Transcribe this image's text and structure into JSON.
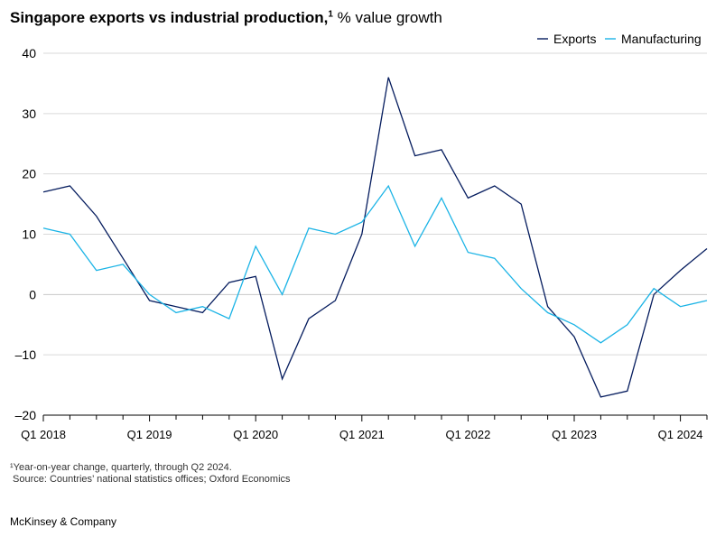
{
  "title": {
    "main": "Singapore exports vs industrial production,",
    "sup": "1",
    "sub": " % value growth"
  },
  "footnote": {
    "note": "¹Year-on-year change, quarterly, through Q2 2024.",
    "source": "Source: Countries’ national statistics offices; Oxford Economics"
  },
  "brand": "McKinsey & Company",
  "chart_data": {
    "type": "line",
    "ylim": [
      -20,
      40
    ],
    "yticks": [
      40,
      30,
      20,
      10,
      0,
      -10,
      -20
    ],
    "ytick_labels": [
      "40",
      "30",
      "20",
      "10",
      "0",
      "–10",
      "–20"
    ],
    "x": [
      "Q1 2018",
      "Q2 2018",
      "Q3 2018",
      "Q4 2018",
      "Q1 2019",
      "Q2 2019",
      "Q3 2019",
      "Q4 2019",
      "Q1 2020",
      "Q2 2020",
      "Q3 2020",
      "Q4 2020",
      "Q1 2021",
      "Q2 2021",
      "Q3 2021",
      "Q4 2021",
      "Q1 2022",
      "Q2 2022",
      "Q3 2022",
      "Q4 2022",
      "Q1 2023",
      "Q2 2023",
      "Q3 2023",
      "Q4 2023",
      "Q1 2024",
      "Q2 2024"
    ],
    "xtick_labels": [
      "Q1 2018",
      "Q1 2019",
      "Q1 2020",
      "Q1 2021",
      "Q1 2022",
      "Q1 2023",
      "Q1 2024"
    ],
    "legend_position": "top-right",
    "series": [
      {
        "name": "Exports",
        "color": "#051c5e",
        "values": [
          17,
          18,
          13,
          6,
          -1,
          -2,
          -3,
          2,
          3,
          -14,
          -4,
          -1,
          10,
          36,
          23,
          24,
          16,
          18,
          15,
          -2,
          -7,
          -17,
          -16,
          0,
          4,
          7.6
        ]
      },
      {
        "name": "Manufacturing",
        "color": "#1cb4e6",
        "values": [
          11,
          10,
          4,
          5,
          0,
          -3,
          -2,
          -4,
          8,
          0,
          11,
          10,
          12,
          18,
          8,
          16,
          7,
          6,
          1,
          -3,
          -5,
          -8,
          -5,
          1,
          -2,
          -1
        ]
      }
    ]
  }
}
